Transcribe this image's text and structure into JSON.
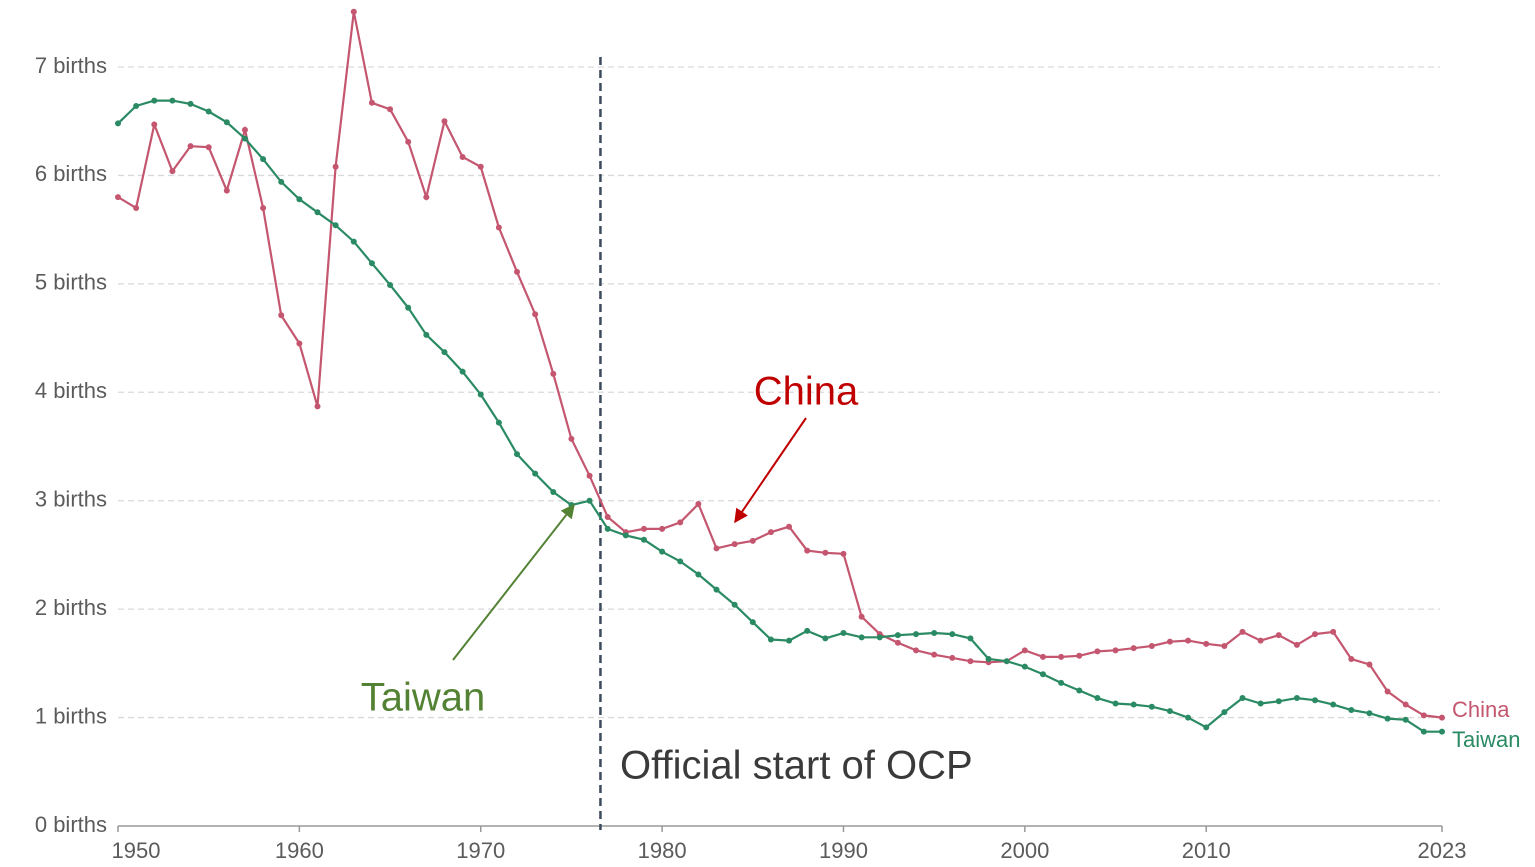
{
  "chart_data": {
    "type": "line",
    "x": [
      1950,
      1951,
      1952,
      1953,
      1954,
      1955,
      1956,
      1957,
      1958,
      1959,
      1960,
      1961,
      1962,
      1963,
      1964,
      1965,
      1966,
      1967,
      1968,
      1969,
      1970,
      1971,
      1972,
      1973,
      1974,
      1975,
      1976,
      1977,
      1978,
      1979,
      1980,
      1981,
      1982,
      1983,
      1984,
      1985,
      1986,
      1987,
      1988,
      1989,
      1990,
      1991,
      1992,
      1993,
      1994,
      1995,
      1996,
      1997,
      1998,
      1999,
      2000,
      2001,
      2002,
      2003,
      2004,
      2005,
      2006,
      2007,
      2008,
      2009,
      2010,
      2011,
      2012,
      2013,
      2014,
      2015,
      2016,
      2017,
      2018,
      2019,
      2020,
      2021,
      2022,
      2023
    ],
    "series": [
      {
        "name": "China",
        "color": "#c4566f",
        "values": [
          5.8,
          5.7,
          6.47,
          6.04,
          6.27,
          6.26,
          5.86,
          6.42,
          5.7,
          4.71,
          4.45,
          3.87,
          6.08,
          7.51,
          6.67,
          6.61,
          6.31,
          5.8,
          6.5,
          6.17,
          6.08,
          5.52,
          5.11,
          4.72,
          4.17,
          3.57,
          3.23,
          2.85,
          2.71,
          2.74,
          2.74,
          2.8,
          2.97,
          2.56,
          2.6,
          2.63,
          2.71,
          2.76,
          2.54,
          2.52,
          2.51,
          1.93,
          1.77,
          1.69,
          1.62,
          1.58,
          1.55,
          1.52,
          1.51,
          1.52,
          1.62,
          1.56,
          1.56,
          1.57,
          1.61,
          1.62,
          1.64,
          1.66,
          1.7,
          1.71,
          1.68,
          1.66,
          1.79,
          1.71,
          1.76,
          1.67,
          1.77,
          1.79,
          1.54,
          1.49,
          1.24,
          1.12,
          1.02,
          1.0
        ]
      },
      {
        "name": "Taiwan",
        "color": "#2a8a63",
        "values": [
          6.48,
          6.64,
          6.69,
          6.69,
          6.66,
          6.59,
          6.49,
          6.34,
          6.15,
          5.94,
          5.78,
          5.66,
          5.54,
          5.39,
          5.19,
          4.99,
          4.78,
          4.53,
          4.37,
          4.19,
          3.98,
          3.72,
          3.43,
          3.25,
          3.08,
          2.96,
          3.0,
          2.74,
          2.68,
          2.64,
          2.53,
          2.44,
          2.32,
          2.18,
          2.04,
          1.88,
          1.72,
          1.71,
          1.8,
          1.73,
          1.78,
          1.74,
          1.74,
          1.76,
          1.77,
          1.78,
          1.77,
          1.73,
          1.54,
          1.52,
          1.47,
          1.4,
          1.32,
          1.25,
          1.18,
          1.13,
          1.12,
          1.1,
          1.06,
          1.0,
          0.91,
          1.05,
          1.18,
          1.13,
          1.15,
          1.18,
          1.16,
          1.12,
          1.07,
          1.04,
          0.99,
          0.98,
          0.87,
          0.87
        ]
      }
    ],
    "xlim": [
      1950,
      2023
    ],
    "xticks": [
      1950,
      1960,
      1970,
      1980,
      1990,
      2000,
      2010,
      2023
    ],
    "ylim": [
      0,
      7
    ],
    "yticks": [
      {
        "value": 0,
        "label": "0 births"
      },
      {
        "value": 1,
        "label": "1 births"
      },
      {
        "value": 2,
        "label": "2 births"
      },
      {
        "value": 3,
        "label": "3 births"
      },
      {
        "value": 4,
        "label": "4 births"
      },
      {
        "value": 5,
        "label": "5 births"
      },
      {
        "value": 6,
        "label": "6 births"
      },
      {
        "value": 7,
        "label": "7 births"
      }
    ],
    "grid": true,
    "vline": {
      "x": 1976.6,
      "label": "Official start of OCP"
    },
    "annotations": [
      {
        "text": "China",
        "color": "#c00000"
      },
      {
        "text": "Taiwan",
        "color": "#548235"
      }
    ]
  }
}
